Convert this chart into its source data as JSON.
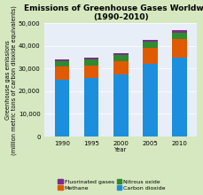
{
  "title": "Emissions of Greenhouse Gases Worldwide\n(1990–2010)",
  "xlabel": "Year",
  "ylabel": "Greenhouse gas emissions\n(million metric tons of carbon dioxide equivalents)",
  "years": [
    1990,
    1995,
    2000,
    2005,
    2010
  ],
  "carbon_dioxide": [
    25000,
    26000,
    27500,
    32000,
    35000
  ],
  "methane": [
    6000,
    5500,
    6000,
    7000,
    8000
  ],
  "nitrous_oxide": [
    2500,
    2500,
    2500,
    2800,
    3000
  ],
  "fluorinated": [
    500,
    700,
    800,
    1000,
    1200
  ],
  "ylim": [
    0,
    50000
  ],
  "yticks": [
    0,
    10000,
    20000,
    30000,
    40000,
    50000
  ],
  "bar_width": 2.5,
  "colors": {
    "carbon_dioxide": "#1b8fdd",
    "methane": "#e05a00",
    "nitrous_oxide": "#2e8b2e",
    "fluorinated": "#7b2d8b"
  },
  "legend_labels": {
    "fluorinated": "Fluorinated gases",
    "methane": "Methane",
    "nitrous_oxide": "Nitrous oxide",
    "carbon_dioxide": "Carbon dioxide"
  },
  "background_color": "#d6e8c0",
  "plot_bg_color": "#e8eef8",
  "title_fontsize": 6.5,
  "axis_label_fontsize": 4.8,
  "tick_fontsize": 5,
  "legend_fontsize": 4.5
}
